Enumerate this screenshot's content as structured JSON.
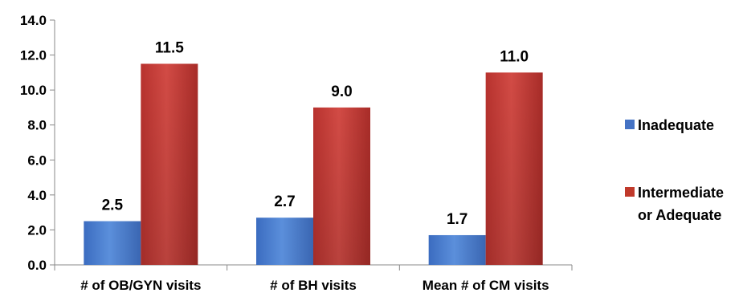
{
  "chart_data": {
    "type": "bar",
    "categories": [
      "# of OB/GYN visits",
      "# of BH visits",
      "Mean # of CM visits"
    ],
    "series": [
      {
        "name": "Inadequate",
        "values": [
          2.5,
          2.7,
          1.7
        ],
        "color": "#4472C4",
        "labels": [
          "2.5",
          "2.7",
          "1.7"
        ]
      },
      {
        "name": "Intermediate or Adequate",
        "name_lines": [
          "Intermediate",
          "or Adequate"
        ],
        "values": [
          11.5,
          9.0,
          11.0
        ],
        "color": "#C0392B",
        "labels": [
          "11.5",
          "9.0",
          "11.0"
        ]
      }
    ],
    "yticks": [
      "0.0",
      "2.0",
      "4.0",
      "6.0",
      "8.0",
      "10.0",
      "12.0",
      "14.0"
    ],
    "ylim": [
      0,
      14
    ],
    "legend_position": "right",
    "grid": false
  }
}
